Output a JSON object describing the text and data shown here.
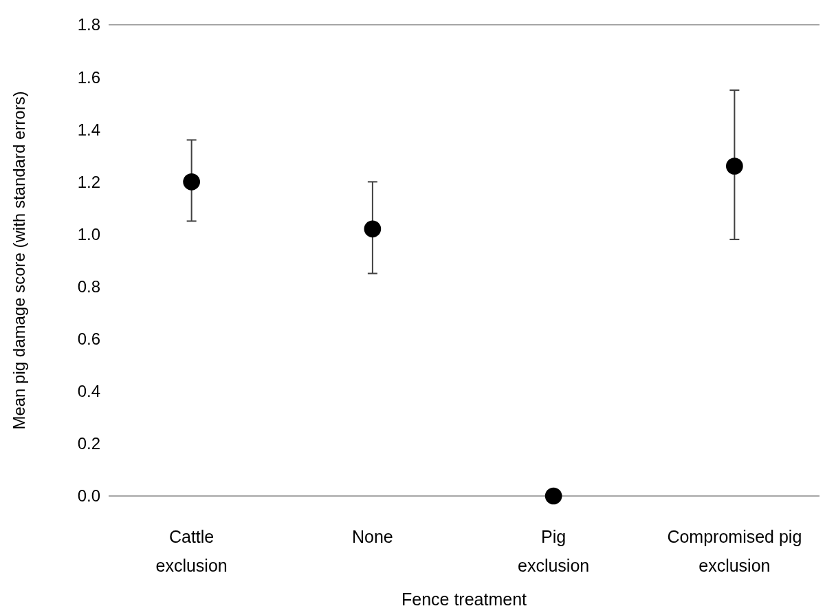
{
  "chart_data": {
    "type": "scatter",
    "xlabel": "Fence treatment",
    "ylabel": "Mean pig damage score (with standard errors)",
    "categories": [
      "Cattle exclusion",
      "None",
      "Pig exclusion",
      "Compromised pig exclusion"
    ],
    "series": [
      {
        "color": "#000000",
        "values": [
          1.2,
          1.02,
          0,
          1.26
        ],
        "errors": [
          [
            1.05,
            1.36
          ],
          [
            0.85,
            1.2
          ],
          null,
          [
            0.98,
            1.55
          ]
        ]
      }
    ],
    "ylim": [
      0,
      1.8
    ],
    "yticks": [
      {
        "value": 0,
        "label": "0.0"
      },
      {
        "value": 0.2,
        "label": "0.2"
      },
      {
        "value": 0.4,
        "label": "0.4"
      },
      {
        "value": 0.6,
        "label": "0.6"
      },
      {
        "value": 0.8,
        "label": "0.8"
      },
      {
        "value": 1,
        "label": "1.0"
      },
      {
        "value": 1.2,
        "label": "1.2"
      },
      {
        "value": 1.4,
        "label": "1.4"
      },
      {
        "value": 1.6,
        "label": "1.6"
      },
      {
        "value": 1.8,
        "label": "1.8"
      }
    ],
    "marker": "circle",
    "grid": false
  }
}
